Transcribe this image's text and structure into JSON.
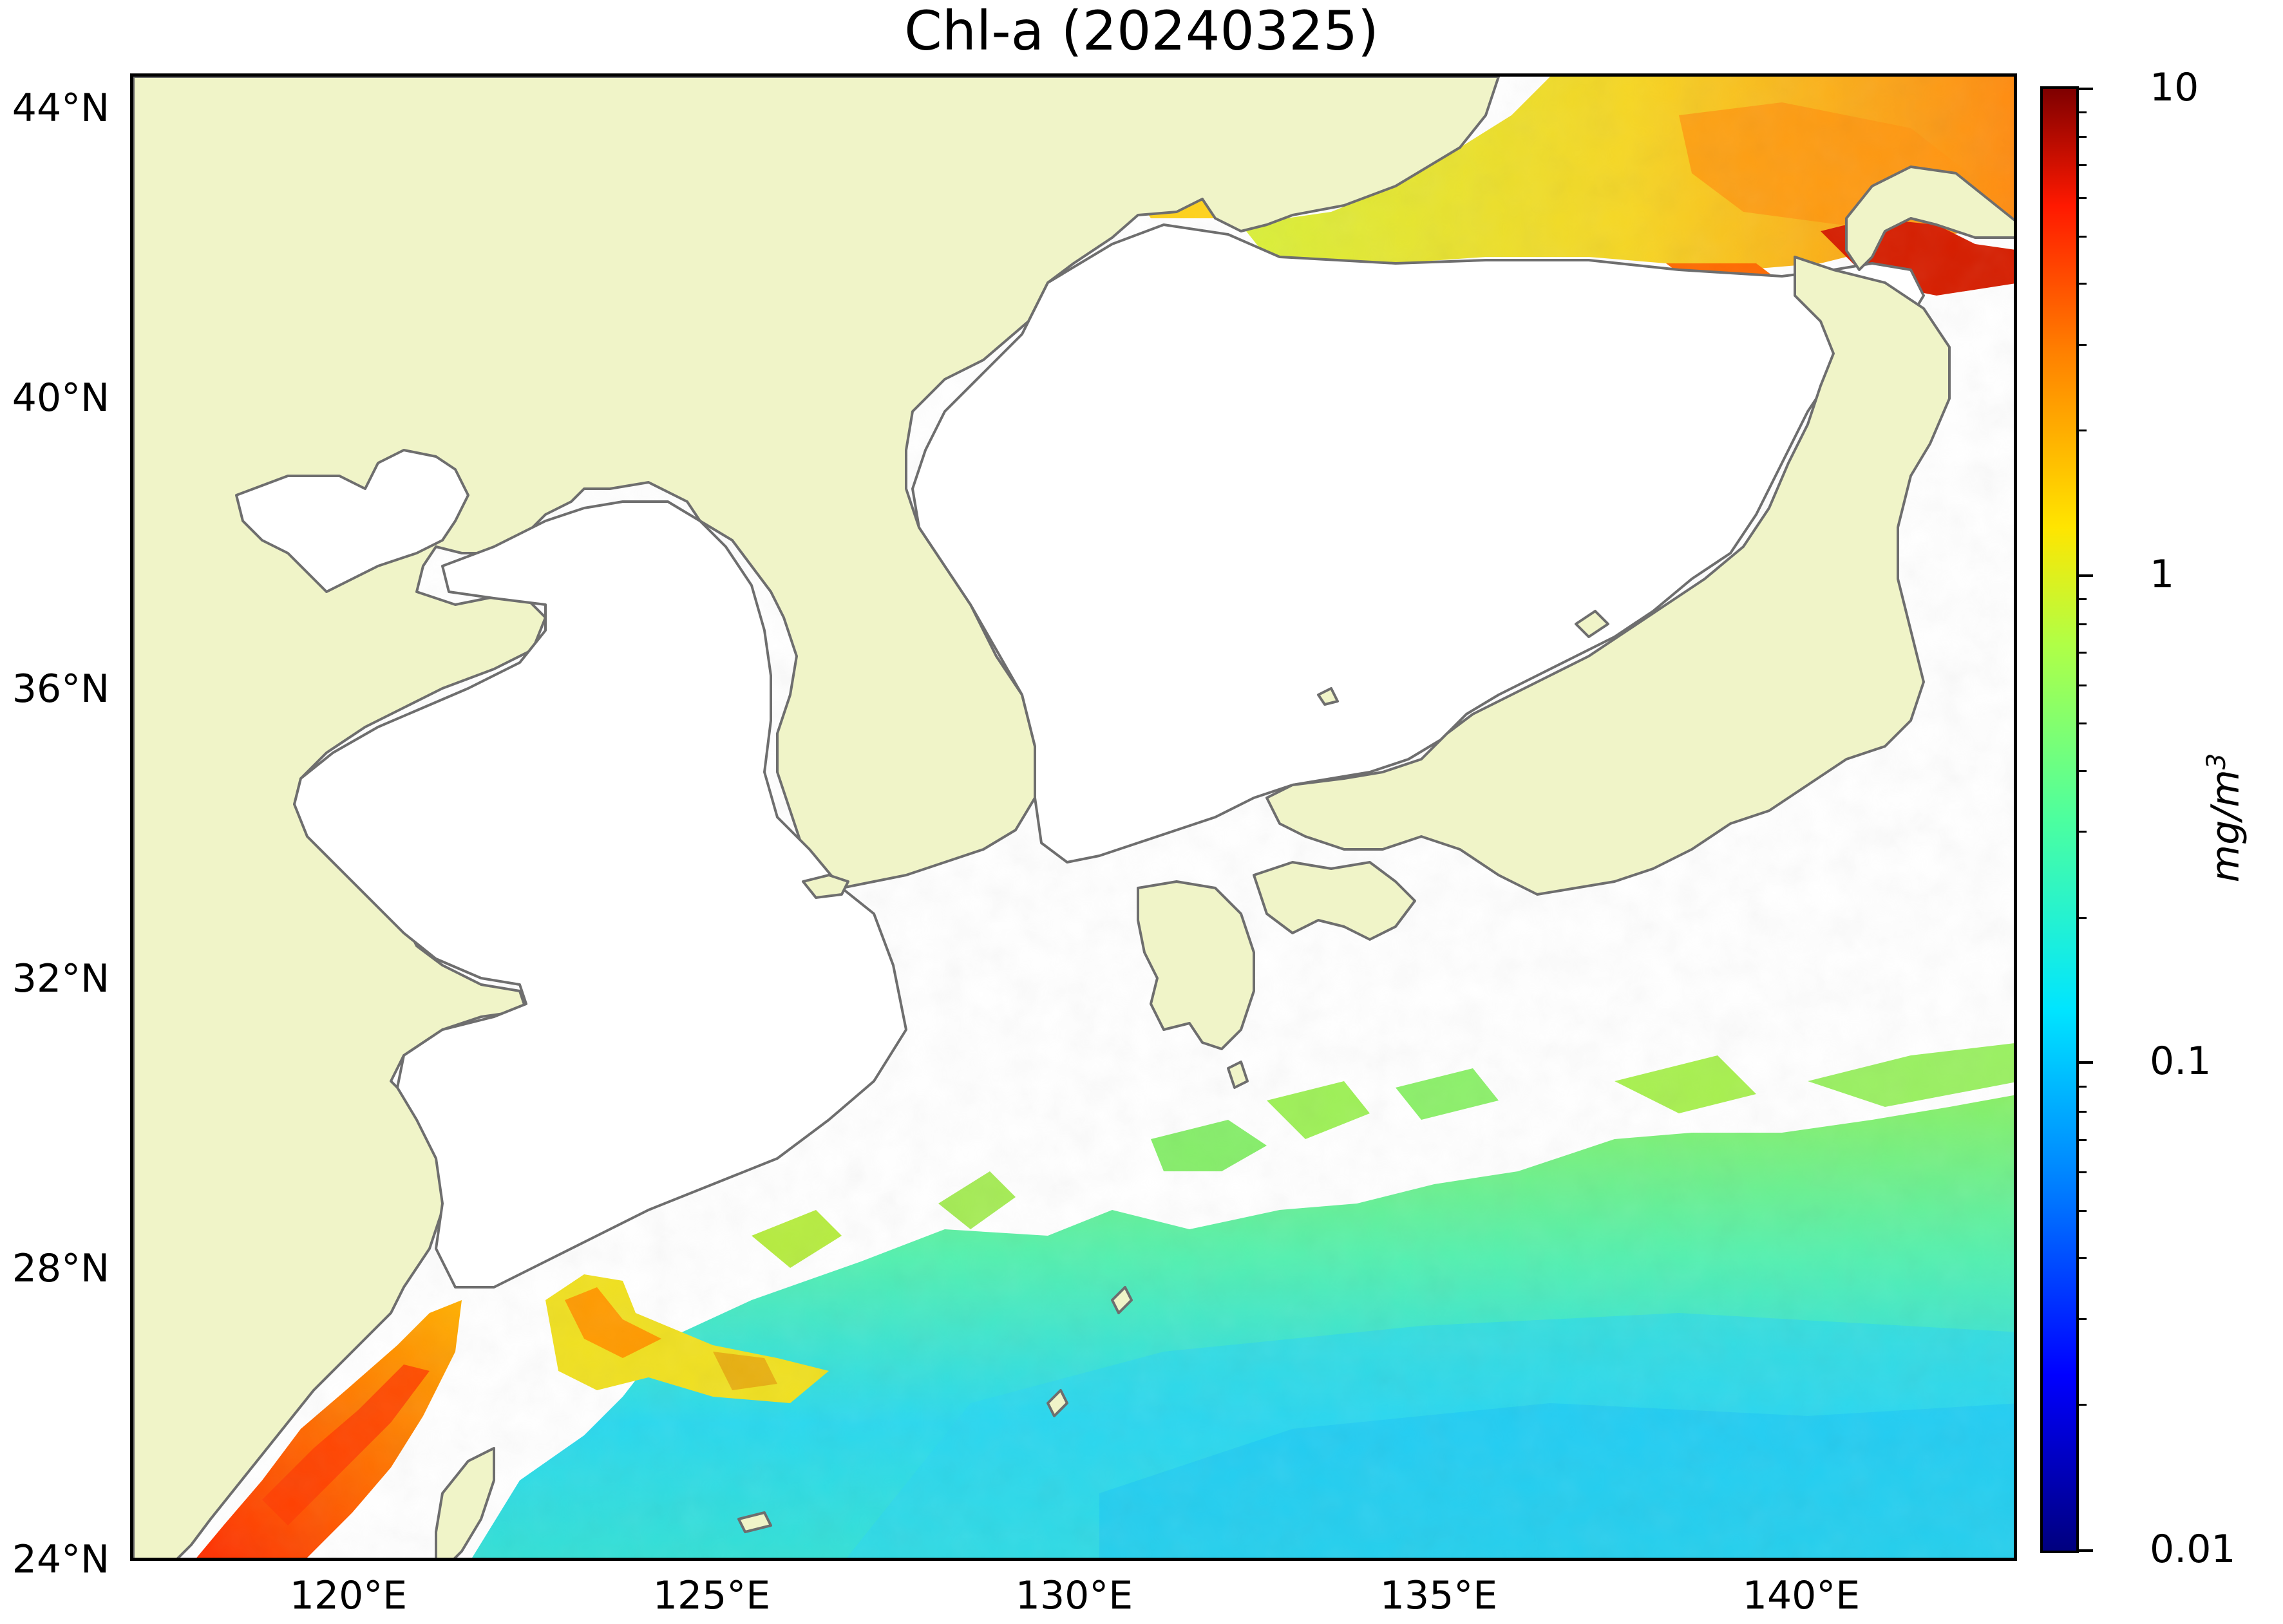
{
  "title": "Chl-a (20240325)",
  "map": {
    "lon_range": [
      117,
      143
    ],
    "lat_range": [
      24,
      44.5
    ],
    "land_color": "#f0f4c8",
    "coastline_color": "#6e6e6e",
    "no_data_color": "#ffffff",
    "lat_ticks": [
      "44°N",
      "40°N",
      "36°N",
      "32°N",
      "28°N",
      "24°N"
    ],
    "lon_ticks": [
      "120°E",
      "125°E",
      "130°E",
      "135°E",
      "140°E"
    ]
  },
  "colorbar": {
    "scale": "log",
    "colormap": "jet",
    "range": [
      0.01,
      10
    ],
    "tick_labels": [
      "10",
      "1",
      "0.1",
      "0.01"
    ],
    "unit_main": "mg/m",
    "unit_sup": "3"
  }
}
